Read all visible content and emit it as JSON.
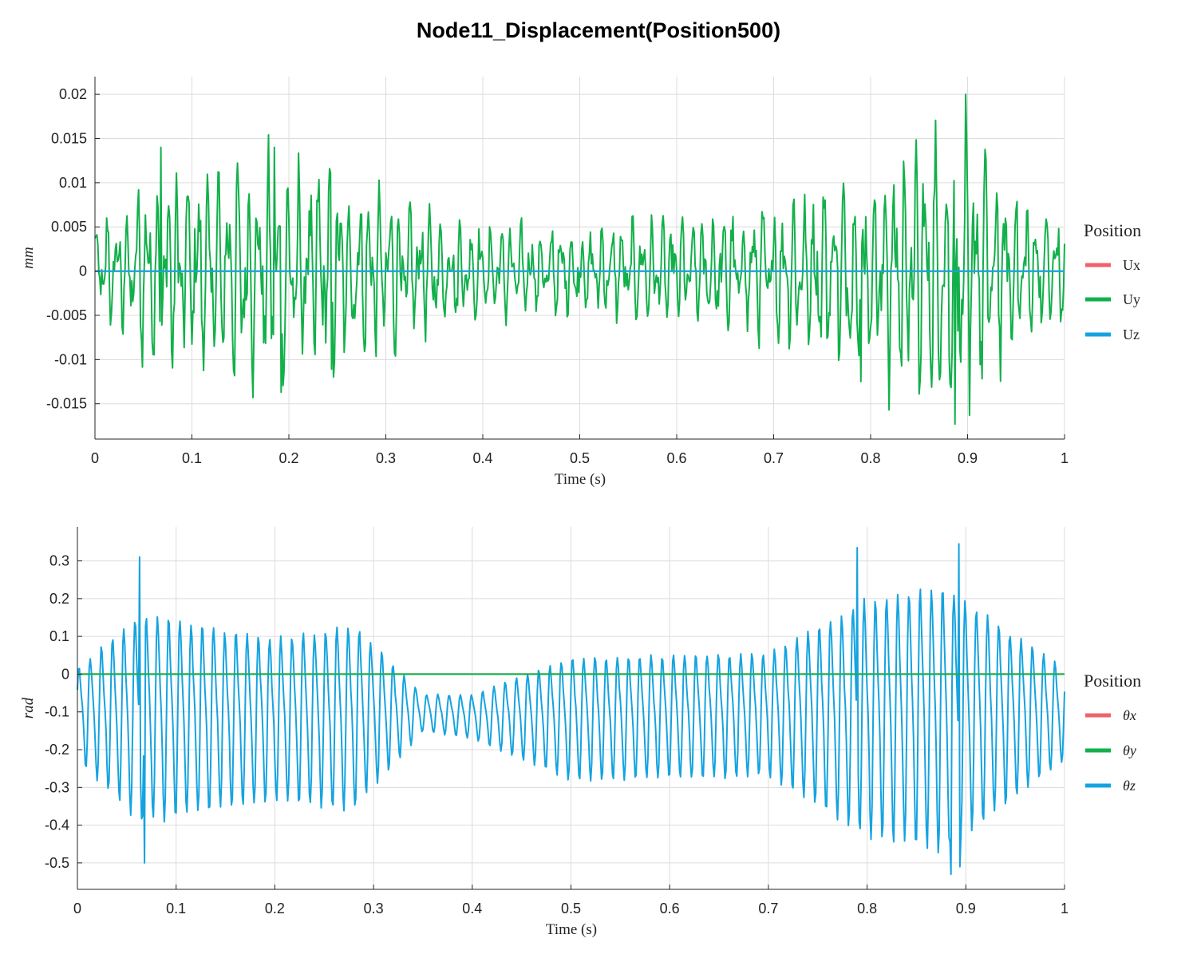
{
  "title": "Node11_Displacement(Position500)",
  "colors": {
    "x": "#f0626b",
    "y": "#12b04a",
    "z": "#15a3e0"
  },
  "chart_data": [
    {
      "type": "line",
      "title": "",
      "xlabel": "Time (s)",
      "ylabel": "mm",
      "xlim": [
        0,
        1
      ],
      "ylim": [
        -0.019,
        0.022
      ],
      "xticks": [
        0,
        0.1,
        0.2,
        0.3,
        0.4,
        0.5,
        0.6,
        0.7,
        0.8,
        0.9,
        1
      ],
      "xtick_labels": [
        "0",
        "0.1",
        "0.2",
        "0.3",
        "0.4",
        "0.5",
        "0.6",
        "0.7",
        "0.8",
        "0.9",
        "1"
      ],
      "yticks": [
        -0.015,
        -0.01,
        -0.005,
        0,
        0.005,
        0.01,
        0.015,
        0.02
      ],
      "ytick_labels": [
        "-0.015",
        "-0.01",
        "-0.005",
        "0",
        "0.005",
        "0.01",
        "0.015",
        "0.02"
      ],
      "grid": true,
      "legend": {
        "title": "Position",
        "placement": "right",
        "entries": [
          "Ux",
          "Uy",
          "Uz"
        ]
      },
      "series": [
        {
          "name": "Ux",
          "color": "#f0626b",
          "constant": 0
        },
        {
          "name": "Uy",
          "color": "#12b04a",
          "envelope": {
            "t": [
              0,
              0.07,
              0.19,
              0.28,
              0.34,
              0.45,
              0.6,
              0.7,
              0.79,
              0.89,
              0.94,
              1
            ],
            "amp": [
              0.006,
              0.012,
              0.013,
              0.011,
              0.007,
              0.005,
              0.006,
              0.008,
              0.012,
              0.018,
              0.011,
              0.007
            ]
          },
          "peaks": [
            {
              "t": 0.068,
              "v": 0.014
            },
            {
              "t": 0.192,
              "v": -0.0137
            },
            {
              "t": 0.185,
              "v": 0.014
            },
            {
              "t": 0.244,
              "v": -0.0111
            },
            {
              "t": 0.79,
              "v": 0.0142
            },
            {
              "t": 0.79,
              "v": -0.0125
            },
            {
              "t": 0.887,
              "v": -0.0173
            },
            {
              "t": 0.898,
              "v": 0.02
            },
            {
              "t": 0.902,
              "v": -0.0163
            }
          ]
        },
        {
          "name": "Uz",
          "color": "#15a3e0",
          "constant": 0
        }
      ]
    },
    {
      "type": "line",
      "title": "",
      "xlabel": "Time (s)",
      "ylabel": "rad",
      "xlim": [
        0,
        1
      ],
      "ylim": [
        -0.57,
        0.39
      ],
      "xticks": [
        0,
        0.1,
        0.2,
        0.3,
        0.4,
        0.5,
        0.6,
        0.7,
        0.8,
        0.9,
        1
      ],
      "xtick_labels": [
        "0",
        "0.1",
        "0.2",
        "0.3",
        "0.4",
        "0.5",
        "0.6",
        "0.7",
        "0.8",
        "0.9",
        "1"
      ],
      "yticks": [
        -0.5,
        -0.4,
        -0.3,
        -0.2,
        -0.1,
        0,
        0.1,
        0.2,
        0.3
      ],
      "ytick_labels": [
        "-0.5",
        "-0.4",
        "-0.3",
        "-0.2",
        "-0.1",
        "0",
        "0.1",
        "0.2",
        "0.3"
      ],
      "grid": true,
      "legend": {
        "title": "Position",
        "placement": "right",
        "entries": [
          "θx",
          "θy",
          "θz"
        ]
      },
      "series": [
        {
          "name": "θx",
          "color": "#f0626b",
          "constant": 0
        },
        {
          "name": "θy",
          "color": "#12b04a",
          "constant": 0
        },
        {
          "name": "θz",
          "color": "#15a3e0",
          "envelope": {
            "t": [
              0,
              0.065,
              0.2,
              0.28,
              0.35,
              0.4,
              0.5,
              0.6,
              0.7,
              0.8,
              0.88,
              0.95,
              1
            ],
            "amp": [
              0.15,
              0.34,
              0.26,
              0.3,
              0.06,
              0.07,
              0.2,
              0.2,
              0.2,
              0.38,
              0.43,
              0.26,
              0.15
            ]
          },
          "center": {
            "t": [
              0,
              0.2,
              0.3,
              0.35,
              0.4,
              0.5,
              0.7,
              0.88,
              1
            ],
            "v": [
              -0.1,
              -0.11,
              -0.1,
              -0.1,
              -0.11,
              -0.11,
              -0.1,
              -0.1,
              -0.1
            ]
          },
          "peaks": [
            {
              "t": 0.063,
              "v": 0.31
            },
            {
              "t": 0.068,
              "v": -0.5
            },
            {
              "t": 0.79,
              "v": 0.335
            },
            {
              "t": 0.885,
              "v": 0.35
            },
            {
              "t": 0.885,
              "v": -0.53
            },
            {
              "t": 0.893,
              "v": 0.345
            },
            {
              "t": 0.894,
              "v": -0.51
            }
          ]
        }
      ]
    }
  ]
}
